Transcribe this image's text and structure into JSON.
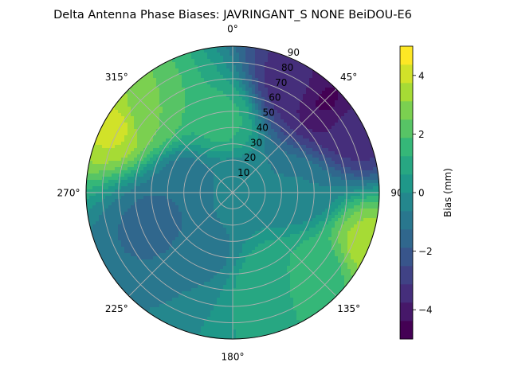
{
  "chart_data": {
    "type": "polar-contour",
    "title": "Delta Antenna Phase Biases: JAVRINGANT_S    NONE BeiDOU-E6",
    "angular_axis": {
      "zero_location": "top",
      "direction": "clockwise",
      "ticks": [
        0,
        45,
        90,
        135,
        180,
        225,
        270,
        315
      ],
      "tick_labels": [
        "0°",
        "45°",
        "90",
        "135°",
        "180°",
        "225°",
        "270°",
        "315°"
      ]
    },
    "radial_axis": {
      "quantity": "zenith angle",
      "range": [
        0,
        90
      ],
      "ticks": [
        10,
        20,
        30,
        40,
        50,
        60,
        70,
        80,
        90
      ],
      "tick_labels": [
        "10",
        "20",
        "30",
        "40",
        "50",
        "60",
        "70",
        "80",
        "90"
      ]
    },
    "colorbar": {
      "label": "Bias (mm)",
      "range": [
        -5,
        5
      ],
      "ticks": [
        -4,
        -2,
        0,
        2,
        4
      ],
      "tick_labels": [
        "−4",
        "−2",
        "0",
        "2",
        "4"
      ],
      "levels": [
        -5,
        -4.375,
        -3.75,
        -3.125,
        -2.5,
        -1.875,
        -1.25,
        -0.625,
        0,
        0.625,
        1.25,
        1.875,
        2.5,
        3.125,
        3.75,
        4.375,
        5
      ],
      "colormap": "viridis"
    },
    "grid": true,
    "regions": [
      {
        "azimuth": 45,
        "zenith": 80,
        "bias_mm": -4.5
      },
      {
        "azimuth": 30,
        "zenith": 75,
        "bias_mm": -3.5
      },
      {
        "azimuth": 62,
        "zenith": 84,
        "bias_mm": -3.5
      },
      {
        "azimuth": 300,
        "zenith": 82,
        "bias_mm": 4.0
      },
      {
        "azimuth": 312,
        "zenith": 70,
        "bias_mm": 2.5
      },
      {
        "azimuth": 112,
        "zenith": 88,
        "bias_mm": 3.5
      },
      {
        "azimuth": 130,
        "zenith": 70,
        "bias_mm": 1.5
      },
      {
        "azimuth": 160,
        "zenith": 55,
        "bias_mm": 1.2
      },
      {
        "azimuth": 350,
        "zenith": 45,
        "bias_mm": 1.5
      },
      {
        "azimuth": 250,
        "zenith": 50,
        "bias_mm": -1.5
      },
      {
        "azimuth": 280,
        "zenith": 30,
        "bias_mm": -1.2
      },
      {
        "azimuth": 200,
        "zenith": 40,
        "bias_mm": -0.8
      },
      {
        "azimuth": 90,
        "zenith": 40,
        "bias_mm": -0.6
      },
      {
        "azimuth": 0,
        "zenith": 0,
        "bias_mm": -0.5
      }
    ]
  }
}
